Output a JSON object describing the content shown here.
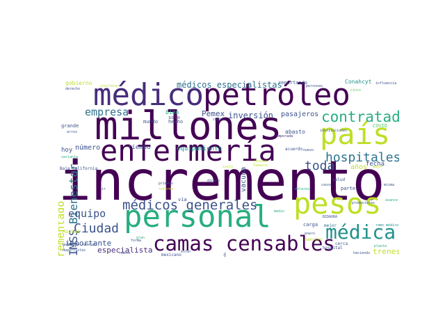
{
  "palette": {
    "dark": "#440154",
    "indigo": "#472d7b",
    "blue": "#3b528b",
    "teal": "#2c728e",
    "cyan": "#21918c",
    "green": "#28ae80",
    "lime": "#5ec962",
    "yellow": "#bddf26",
    "bright": "#fde725"
  },
  "words": [
    {
      "id": "incremento",
      "text": "incremento",
      "color": "#440154"
    },
    {
      "id": "millones",
      "text": "millones",
      "color": "#440154"
    },
    {
      "id": "medico",
      "text": "médico",
      "color": "#472d7b"
    },
    {
      "id": "petroleo",
      "text": "petróleo",
      "color": "#440154"
    },
    {
      "id": "enfermeria",
      "text": "enfermería",
      "color": "#440154"
    },
    {
      "id": "pais",
      "text": "país",
      "color": "#bddf26"
    },
    {
      "id": "personal",
      "text": "personal",
      "color": "#28ae80"
    },
    {
      "id": "pesos",
      "text": "pesos",
      "color": "#bddf26"
    },
    {
      "id": "camas-censables",
      "text": "camas censables",
      "color": "#440154"
    },
    {
      "id": "medica",
      "text": "médica",
      "color": "#21918c"
    },
    {
      "id": "contratado",
      "text": "contratado",
      "color": "#28ae80"
    },
    {
      "id": "medicos-generales",
      "text": "médicos generales",
      "color": "#3b528b"
    },
    {
      "id": "hospitales",
      "text": "hospitales",
      "color": "#2c728e"
    },
    {
      "id": "toda",
      "text": "toda",
      "color": "#3b528b"
    },
    {
      "id": "ciudad",
      "text": "Ciudad",
      "color": "#3b528b"
    },
    {
      "id": "bienestar",
      "text": "Bienestar",
      "color": "#2c728e"
    },
    {
      "id": "imss",
      "text": "IMSS",
      "color": "#3b528b"
    },
    {
      "id": "incrementado",
      "text": "incrementado",
      "color": "#bddf26"
    },
    {
      "id": "empresa",
      "text": "empresa",
      "color": "#2c728e"
    },
    {
      "id": "medicos-especialistas",
      "text": "médicos especialistas",
      "color": "#2c728e"
    },
    {
      "id": "equipo",
      "text": "equipo",
      "color": "#3b528b"
    },
    {
      "id": "importante",
      "text": "importante",
      "color": "#3b528b"
    },
    {
      "id": "especialista",
      "text": "especialista",
      "color": "#472d7b"
    },
    {
      "id": "inversion",
      "text": "inversión",
      "color": "#3b528b"
    },
    {
      "id": "pemex",
      "text": "Pemex",
      "color": "#3b528b"
    },
    {
      "id": "pasajeros",
      "text": "pasajeros",
      "color": "#3b528b"
    },
    {
      "id": "vacuna",
      "text": "vacuna",
      "color": "#3b528b"
    },
    {
      "id": "trenes",
      "text": "trenes",
      "color": "#bddf26"
    },
    {
      "id": "anos",
      "text": "años",
      "color": "#bddf26"
    },
    {
      "id": "fecha",
      "text": "fecha",
      "color": "#3b528b"
    },
    {
      "id": "numero",
      "text": "número",
      "color": "#3b528b"
    },
    {
      "id": "tiempo",
      "text": "tiempo",
      "color": "#3b528b"
    },
    {
      "id": "equipamiento",
      "text": "equipamiento",
      "color": "#21918c"
    },
    {
      "id": "hoy",
      "text": "hoy",
      "color": "#3b528b"
    },
    {
      "id": "gobierno",
      "text": "gobierno",
      "color": "#bddf26"
    },
    {
      "id": "abasto",
      "text": "abasto",
      "color": "#3b528b"
    },
    {
      "id": "conahcyt",
      "text": "Conahcyt",
      "color": "#21918c"
    },
    {
      "id": "reportando",
      "text": "reportando",
      "color": "#3b528b"
    },
    {
      "id": "bien",
      "text": "bien",
      "color": "#28ae80"
    },
    {
      "id": "solo",
      "text": "solo",
      "color": "#3b528b"
    },
    {
      "id": "grande",
      "text": "grande",
      "color": "#3b528b"
    },
    {
      "id": "mundo",
      "text": "mundo",
      "color": "#3b528b"
    },
    {
      "id": "covid",
      "text": "COVID",
      "color": "#5ec962"
    },
    {
      "id": "carga",
      "text": "carga",
      "color": "#3b528b"
    },
    {
      "id": "mejor",
      "text": "mejor",
      "color": "#2c728e"
    },
    {
      "id": "muchas",
      "text": "Muchas",
      "color": "#bddf26"
    },
    {
      "id": "hecho",
      "text": "hecho",
      "color": "#3b528b"
    },
    {
      "id": "via",
      "text": "vía",
      "color": "#3b528b"
    },
    {
      "id": "parte",
      "text": "parte",
      "color": "#3b528b"
    },
    {
      "id": "salud",
      "text": "salud",
      "color": "#3b528b"
    },
    {
      "id": "acuerdo",
      "text": "acuerdo",
      "color": "#3b528b"
    },
    {
      "id": "mexicano",
      "text": "mexicano",
      "color": "#3b528b"
    },
    {
      "id": "hospital",
      "text": "hospital",
      "color": "#3b528b"
    },
    {
      "id": "cerca",
      "text": "cerca",
      "color": "#3b528b"
    },
    {
      "id": "baja-california",
      "text": "Baja California",
      "color": "#3b528b"
    },
    {
      "id": "influencia",
      "text": "influencia",
      "color": "#3b528b"
    },
    {
      "id": "instituciones",
      "text": "instituciones",
      "color": "#3b528b"
    },
    {
      "id": "productores",
      "text": "productores",
      "color": "#3b528b"
    },
    {
      "id": "temporada",
      "text": "temporada",
      "color": "#472d7b"
    },
    {
      "id": "unidos",
      "text": "Unidos",
      "color": "#bddf26"
    },
    {
      "id": "tabasco",
      "text": "Tabasco",
      "color": "#bddf26"
    },
    {
      "id": "dolares",
      "text": "dólares",
      "color": "#28ae80"
    },
    {
      "id": "dinero",
      "text": "dinero",
      "color": "#3b528b"
    },
    {
      "id": "forma",
      "text": "forma",
      "color": "#3b528b"
    },
    {
      "id": "gran",
      "text": "gran",
      "color": "#28ae80"
    },
    {
      "id": "gobierno-federal",
      "text": "gobierno federal",
      "color": "#3b528b"
    },
    {
      "id": "deportistas",
      "text": "deportistas",
      "color": "#3b528b"
    },
    {
      "id": "nueva",
      "text": "nueva",
      "color": "#3b528b"
    },
    {
      "id": "haciendo",
      "text": "haciendo",
      "color": "#3b528b"
    },
    {
      "id": "planta",
      "text": "planta",
      "color": "#28ae80"
    },
    {
      "id": "avance",
      "text": "avance",
      "color": "#28ae80"
    },
    {
      "id": "primero",
      "text": "primero",
      "color": "#3b528b"
    },
    {
      "id": "reforma",
      "text": "reforma",
      "color": "#bddf26"
    },
    {
      "id": "derecho",
      "text": "derecho",
      "color": "#3b528b"
    },
    {
      "id": "contratar",
      "text": "contratar",
      "color": "#bddf26"
    },
    {
      "id": "personas",
      "text": "personas",
      "color": "#3b528b"
    },
    {
      "id": "nuevo",
      "text": "nuevo",
      "color": "#3b528b"
    },
    {
      "id": "casos",
      "text": "casos",
      "color": "#3b528b"
    },
    {
      "id": "maestro",
      "text": "maestro",
      "color": "#bddf26"
    },
    {
      "id": "ramo-medico",
      "text": "ramo médico",
      "color": "#21918c"
    },
    {
      "id": "misma",
      "text": "misma",
      "color": "#3b528b"
    },
    {
      "id": "enero",
      "text": "enero",
      "color": "#3b528b"
    },
    {
      "id": "cuanto",
      "text": "cuanto",
      "color": "#3b528b"
    },
    {
      "id": "variante",
      "text": "variante",
      "color": "#28ae80"
    },
    {
      "id": "siglo",
      "text": "siglo",
      "color": "#bddf26"
    },
    {
      "id": "arroz",
      "text": "arroz",
      "color": "#3b528b"
    },
    {
      "id": "medio",
      "text": "medio",
      "color": "#28ae80"
    },
    {
      "id": "sido",
      "text": "sido",
      "color": "#3b528b"
    },
    {
      "id": "cinco",
      "text": "cinco",
      "color": "#5ec962"
    },
    {
      "id": "estar",
      "text": "estar",
      "color": "#3b528b"
    },
    {
      "id": "bidaura",
      "text": "BIDAURA",
      "color": "#3b528b"
    },
    {
      "id": "ir",
      "text": "ir",
      "color": "#3b528b"
    },
    {
      "id": "mayor",
      "text": "mayor",
      "color": "#bddf26"
    }
  ]
}
